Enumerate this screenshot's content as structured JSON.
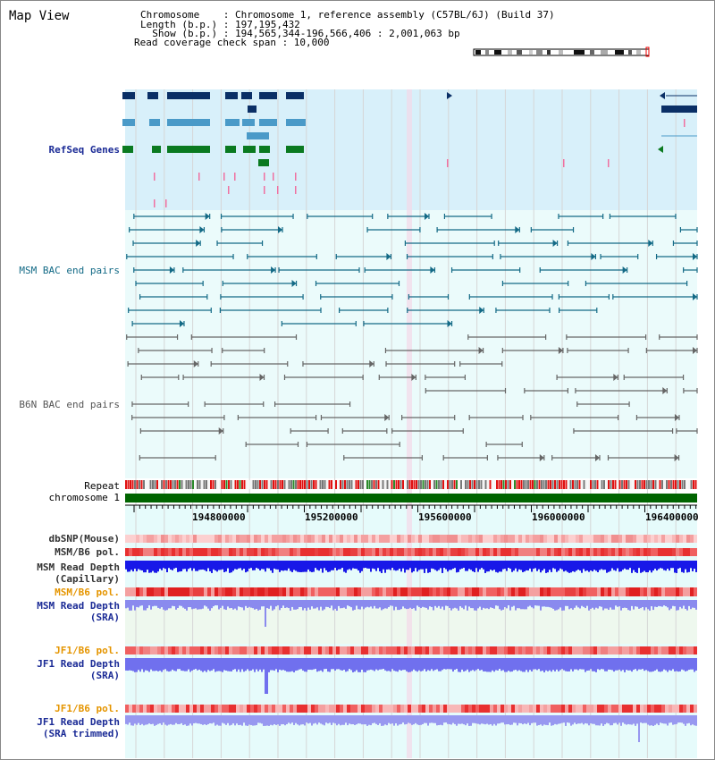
{
  "page": {
    "title": "Map View"
  },
  "header": {
    "chromosome_line": "Chromosome    : Chromosome 1, reference assembly (C57BL/6J) (Build 37)",
    "length_line": "Length (b.p.) : 197,195,432",
    "show_line": "  Show (b.p.) : 194,565,344-196,566,406 : 2,001,063 bp",
    "coverage_line": "Read coverage check span : 10,000"
  },
  "tracks": {
    "refseq": "RefSeq Genes",
    "msm_bac": "MSM BAC end pairs",
    "b6n_bac": "B6N BAC end pairs",
    "repeat": "Repeat",
    "chromosome": "chromosome 1",
    "dbsnp": "dbSNP(Mouse)",
    "msm_b6_pol_1": "MSM/B6 pol.",
    "msm_read_depth_cap": "MSM Read Depth\n(Capillary)",
    "msm_b6_pol_2": "MSM/B6 pol.",
    "msm_read_depth_sra": "MSM Read Depth\n(SRA)",
    "jf1_b6_pol_1": "JF1/B6 pol.",
    "jf1_read_depth_sra": "JF1 Read Depth\n(SRA)",
    "jf1_b6_pol_2": "JF1/B6 pol.",
    "jf1_read_depth_trim": "JF1 Read Depth\n(SRA trimmed)"
  },
  "axis": {
    "ticks": [
      "194800000",
      "195200000",
      "195600000",
      "196000000",
      "196400000"
    ]
  },
  "colors": {
    "refseq_bg": "#d8f0fa",
    "bac_bg": "#ebfbfb",
    "gene_navy": "#0a2f66",
    "gene_light": "#4a9ac8",
    "gene_green": "#0a7a20",
    "bac_teal": "#136a86",
    "bac_grey": "#666666",
    "chrom_green": "#006400",
    "depth_blue": "#2020ee",
    "depth_lavender": "#8a8aee"
  }
}
